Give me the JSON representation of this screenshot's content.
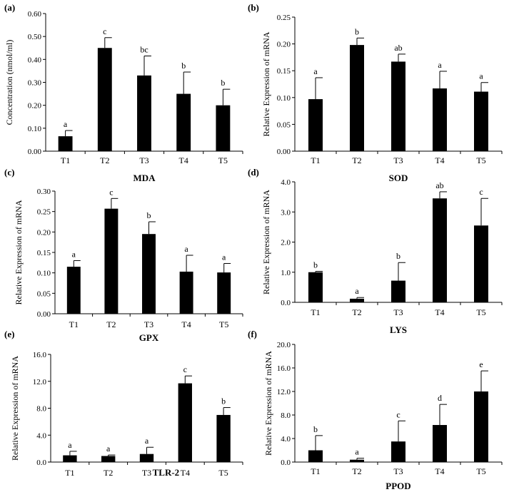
{
  "chart_data": [
    {
      "panel": "(a)",
      "type": "bar",
      "categories": [
        "T1",
        "T2",
        "T3",
        "T4",
        "T5"
      ],
      "values": [
        0.065,
        0.45,
        0.33,
        0.25,
        0.2
      ],
      "errors": [
        0.025,
        0.045,
        0.085,
        0.095,
        0.07
      ],
      "letters": [
        "a",
        "c",
        "bc",
        "b",
        "b"
      ],
      "xlabel": "MDA",
      "ylabel": "Concentration (nmol/ml)",
      "ylim": [
        0,
        0.6
      ],
      "ticks": [
        "0.00",
        "0.10",
        "0.20",
        "0.30",
        "0.40",
        "0.50",
        "0.60"
      ]
    },
    {
      "panel": "(b)",
      "type": "bar",
      "categories": [
        "T1",
        "T2",
        "T3",
        "T4",
        "T5"
      ],
      "values": [
        0.097,
        0.198,
        0.167,
        0.117,
        0.111
      ],
      "errors": [
        0.04,
        0.013,
        0.014,
        0.032,
        0.017
      ],
      "letters": [
        "a",
        "b",
        "ab",
        "a",
        "a"
      ],
      "xlabel": "SOD",
      "ylabel": "Relative Expression of mRNA",
      "ylim": [
        0,
        0.25
      ],
      "ticks": [
        "0.00",
        "0.05",
        "0.10",
        "0.15",
        "0.20",
        "0.25"
      ]
    },
    {
      "panel": "(c)",
      "type": "bar",
      "categories": [
        "T1",
        "T2",
        "T3",
        "T4",
        "T5"
      ],
      "values": [
        0.115,
        0.257,
        0.195,
        0.103,
        0.101
      ],
      "errors": [
        0.015,
        0.025,
        0.03,
        0.04,
        0.022
      ],
      "letters": [
        "a",
        "c",
        "b",
        "a",
        "a"
      ],
      "xlabel": "GPX",
      "ylabel": "Relative Expression of mRNA",
      "ylim": [
        0,
        0.3
      ],
      "ticks": [
        "0.00",
        "0.05",
        "0.10",
        "0.15",
        "0.20",
        "0.25",
        "0.30"
      ]
    },
    {
      "panel": "(d)",
      "type": "bar",
      "categories": [
        "T1",
        "T2",
        "T3",
        "T4",
        "T5"
      ],
      "values": [
        1.0,
        0.12,
        0.72,
        3.45,
        2.55
      ],
      "errors": [
        0.03,
        0.04,
        0.6,
        0.22,
        0.9
      ],
      "letters": [
        "b",
        "a",
        "b",
        "ab",
        "c"
      ],
      "xlabel": "LYS",
      "ylabel": "Relative Expression of mRNA",
      "ylim": [
        0,
        4.0
      ],
      "ticks": [
        "0.0",
        "1.0",
        "2.0",
        "3.0",
        "4.0"
      ]
    },
    {
      "panel": "(e)",
      "type": "bar",
      "categories": [
        "T1",
        "T2",
        "T3",
        "T4",
        "T5"
      ],
      "values": [
        1.0,
        0.9,
        1.2,
        11.7,
        7.0
      ],
      "errors": [
        0.6,
        0.15,
        1.0,
        1.1,
        1.1
      ],
      "letters": [
        "a",
        "a",
        "a",
        "c",
        "b"
      ],
      "xlabel": "TLR-2",
      "ylabel": "Relative Expression of mRNA",
      "ylim": [
        0,
        16.0
      ],
      "ticks": [
        "0.0",
        "4.0",
        "8.0",
        "12.0",
        "16.0"
      ]
    },
    {
      "panel": "(f)",
      "type": "bar",
      "categories": [
        "T1",
        "T2",
        "T3",
        "T4",
        "T5"
      ],
      "values": [
        2.0,
        0.4,
        3.5,
        6.3,
        12.0
      ],
      "errors": [
        2.5,
        0.25,
        3.5,
        3.5,
        3.5
      ],
      "letters": [
        "b",
        "a",
        "c",
        "d",
        "e"
      ],
      "xlabel": "PPOD",
      "ylabel": "Relative Expression of mRNA",
      "ylim": [
        0,
        20.0
      ],
      "ticks": [
        "0.0",
        "4.0",
        "8.0",
        "12.0",
        "16.0",
        "20.0"
      ]
    }
  ],
  "colors": {
    "bar": "#000000",
    "axis": "#000000"
  }
}
